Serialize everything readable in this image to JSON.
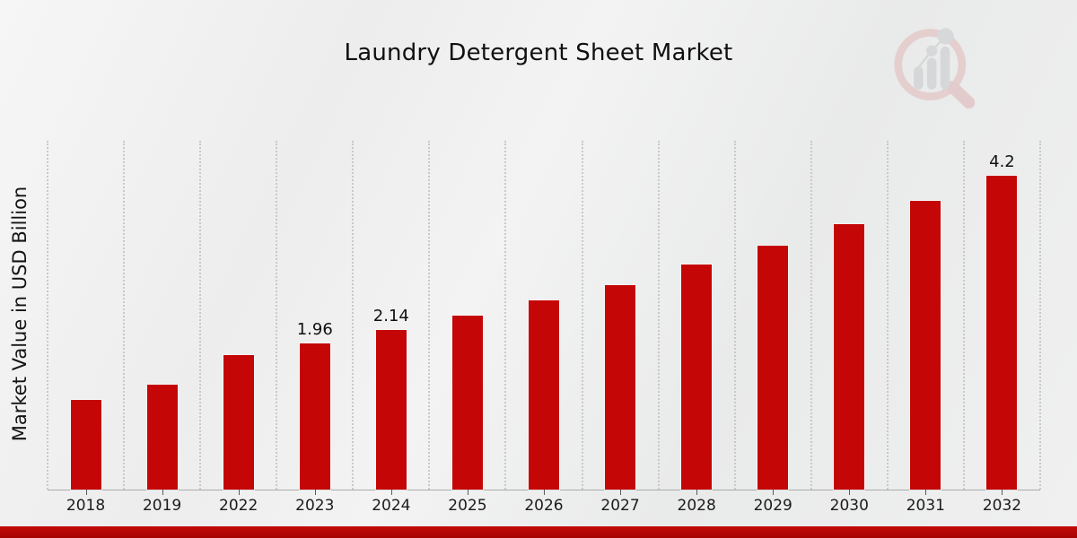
{
  "page": {
    "title": "Laundry Detergent Sheet Market",
    "watermark_icon": "magnifier-bar-chart-logo"
  },
  "footer": {
    "bar_color_top": "#c40a0a",
    "bar_color_bottom": "#a50303"
  },
  "chart_data": {
    "type": "bar",
    "title": "Laundry Detergent Sheet Market",
    "xlabel": "",
    "ylabel": "Market Value in USD Billion",
    "categories": [
      "2018",
      "2019",
      "2022",
      "2023",
      "2024",
      "2025",
      "2026",
      "2027",
      "2028",
      "2029",
      "2030",
      "2031",
      "2032"
    ],
    "values": [
      1.2,
      1.4,
      1.8,
      1.96,
      2.14,
      2.33,
      2.53,
      2.74,
      3.01,
      3.27,
      3.55,
      3.86,
      4.2
    ],
    "data_labels": {
      "2023": "1.96",
      "2024": "2.14",
      "2032": "4.2"
    },
    "bar_color": "#c50606",
    "ylim": [
      0,
      4.67
    ],
    "grid": "vertical-dotted",
    "legend": "none",
    "tick_color": "#5a5a5a",
    "gridline_color": "#c9c9cc"
  }
}
